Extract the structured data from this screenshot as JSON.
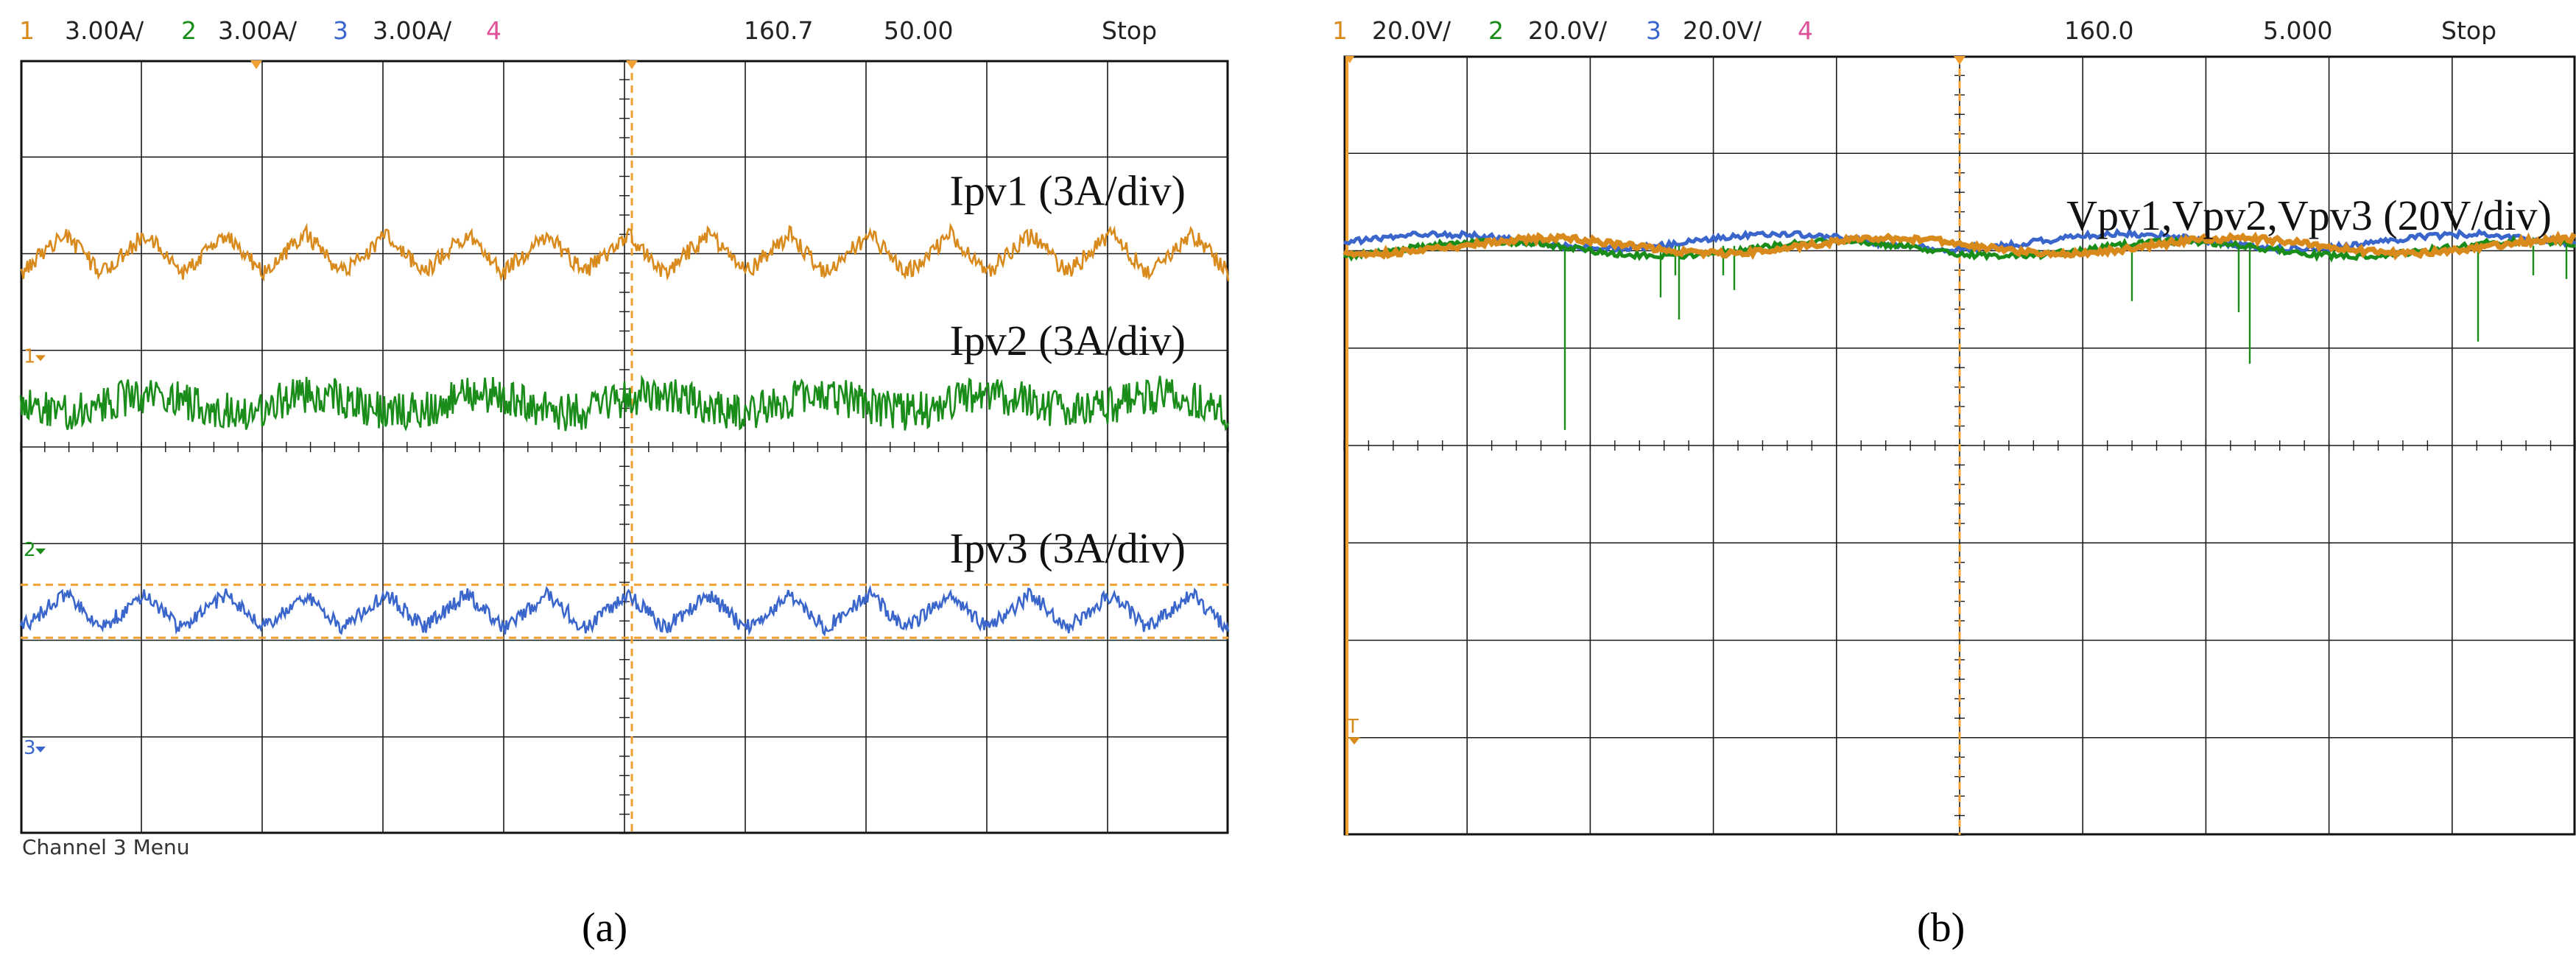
{
  "colors": {
    "ch1": "#d98a1d",
    "ch2": "#1a8c1a",
    "ch3": "#3a66cc",
    "ch4": "#e0509a",
    "grid": "#1a1a1a",
    "marker": "#f0a030"
  },
  "chart_data": [
    {
      "type": "line",
      "panel_label": "(a)",
      "header": {
        "ch1_num": "1",
        "ch1_scale": "3.00A/",
        "ch2_num": "2",
        "ch2_scale": "3.00A/",
        "ch3_num": "3",
        "ch3_scale": "3.00A/",
        "ch4_num": "4",
        "time_offset": "160.7",
        "time_div": "50.00",
        "state": "Stop"
      },
      "footer_text": "Channel 3 Menu",
      "divisions": {
        "x": 10,
        "y": 8
      },
      "series": [
        {
          "name": "Ipv1  (3A/div)",
          "channel": 1,
          "level_div": 6.0,
          "ripple_div": 0.2,
          "cycles": 15
        },
        {
          "name": "Ipv2  (3A/div)",
          "channel": 2,
          "level_div": 4.45,
          "ripple_div": 0.22,
          "cycles": 0
        },
        {
          "name": "Ipv3  (3A/div)",
          "channel": 3,
          "level_div": 2.3,
          "ripple_div": 0.18,
          "cycles": 15
        }
      ],
      "ground_markers": [
        "1",
        "2",
        "3"
      ]
    },
    {
      "type": "line",
      "panel_label": "(b)",
      "header": {
        "ch1_num": "1",
        "ch1_scale": "20.0V/",
        "ch2_num": "2",
        "ch2_scale": "20.0V/",
        "ch3_num": "3",
        "ch3_scale": "20.0V/",
        "ch4_num": "4",
        "time_offset": "160.0",
        "time_div": "5.000",
        "state": "Stop"
      },
      "divisions": {
        "x": 10,
        "y": 8
      },
      "series": [
        {
          "name": "Vpv1,Vpv2,Vpv3  (20V/div)",
          "channels": [
            1,
            2,
            3
          ],
          "level_div": 6.05
        }
      ],
      "ground_markers": [
        "T"
      ]
    }
  ]
}
